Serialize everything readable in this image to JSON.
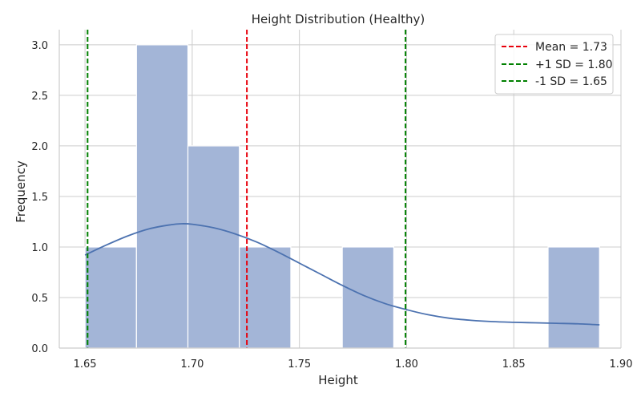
{
  "chart_data": {
    "type": "bar",
    "title": "Height Distribution (Healthy)",
    "xlabel": "Height",
    "ylabel": "Frequency",
    "xlim": [
      1.638,
      1.9
    ],
    "ylim": [
      0,
      3.15
    ],
    "grid": true,
    "legend_position": "top-right",
    "x_ticks": [
      1.65,
      1.7,
      1.75,
      1.8,
      1.85,
      1.9
    ],
    "x_tick_labels": [
      "1.65",
      "1.70",
      "1.75",
      "1.80",
      "1.85",
      "1.90"
    ],
    "y_ticks": [
      0,
      0.5,
      1.0,
      1.5,
      2.0,
      2.5,
      3.0
    ],
    "y_tick_labels": [
      "0.0",
      "0.5",
      "1.0",
      "1.5",
      "2.0",
      "2.5",
      "3.0"
    ],
    "histogram": {
      "color": "#a3b5d7",
      "bins": [
        {
          "start": 1.65,
          "end": 1.674,
          "count": 1
        },
        {
          "start": 1.674,
          "end": 1.698,
          "count": 3
        },
        {
          "start": 1.698,
          "end": 1.722,
          "count": 2
        },
        {
          "start": 1.722,
          "end": 1.746,
          "count": 1
        },
        {
          "start": 1.746,
          "end": 1.77,
          "count": 0
        },
        {
          "start": 1.77,
          "end": 1.794,
          "count": 1
        },
        {
          "start": 1.794,
          "end": 1.818,
          "count": 0
        },
        {
          "start": 1.818,
          "end": 1.842,
          "count": 0
        },
        {
          "start": 1.842,
          "end": 1.866,
          "count": 0
        },
        {
          "start": 1.866,
          "end": 1.89,
          "count": 1
        }
      ]
    },
    "kde": {
      "color": "#4c72b0",
      "x": [
        1.65,
        1.66,
        1.67,
        1.68,
        1.69,
        1.695,
        1.7,
        1.71,
        1.72,
        1.73,
        1.74,
        1.75,
        1.76,
        1.77,
        1.78,
        1.79,
        1.8,
        1.81,
        1.82,
        1.83,
        1.84,
        1.85,
        1.86,
        1.87,
        1.88,
        1.89
      ],
      "y": [
        0.92,
        1.02,
        1.11,
        1.18,
        1.22,
        1.23,
        1.225,
        1.19,
        1.13,
        1.05,
        0.95,
        0.84,
        0.73,
        0.62,
        0.52,
        0.44,
        0.38,
        0.33,
        0.295,
        0.275,
        0.262,
        0.255,
        0.25,
        0.245,
        0.24,
        0.23
      ]
    },
    "vlines": [
      {
        "label": "Mean = 1.73",
        "x": 1.7255,
        "color": "#e8000b"
      },
      {
        "label": "+1 SD = 1.80",
        "x": 1.7995,
        "color": "#008000"
      },
      {
        "label": "-1 SD = 1.65",
        "x": 1.6512,
        "color": "#008000"
      }
    ]
  }
}
